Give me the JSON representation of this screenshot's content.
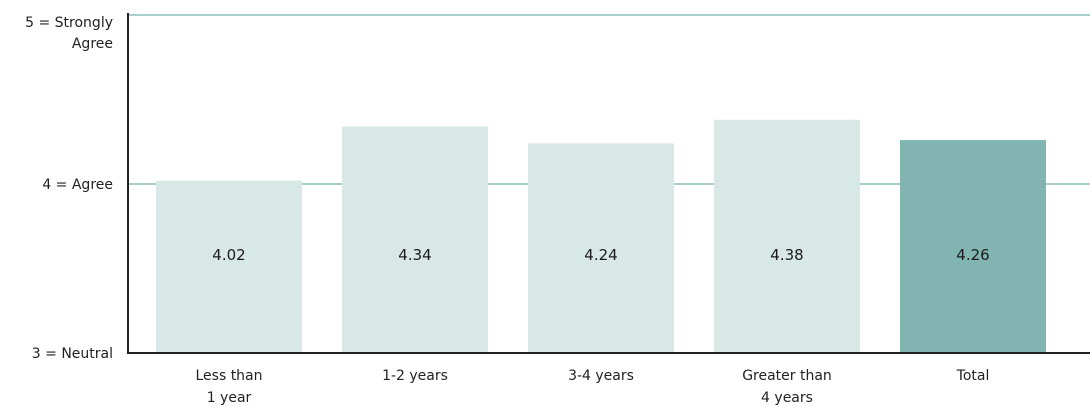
{
  "chart_data": {
    "type": "bar",
    "title": "",
    "xlabel": "",
    "ylabel": "",
    "ylim": [
      3,
      5
    ],
    "grid": true,
    "legend": "none",
    "categories": [
      [
        "Less than",
        "1 year"
      ],
      [
        "1-2 years"
      ],
      [
        "3-4 years"
      ],
      [
        "Greater than",
        "4 years"
      ],
      [
        "Total"
      ]
    ],
    "values": [
      4.02,
      4.34,
      4.24,
      4.38,
      4.26
    ],
    "value_labels": [
      "4.02",
      "4.34",
      "4.24",
      "4.38",
      "4.26"
    ],
    "y_ticks": [
      {
        "value": 5,
        "lines": [
          "5 = Strongly",
          "Agree"
        ]
      },
      {
        "value": 4,
        "lines": [
          "4 = Agree"
        ]
      },
      {
        "value": 3,
        "lines": [
          "3 = Neutral"
        ]
      }
    ],
    "bar_color": "#d8e8e6",
    "highlight_index": 4,
    "highlight_color": "#82b5b1",
    "gridline_color": "#a9cfcc",
    "axis_color": "#222222"
  }
}
